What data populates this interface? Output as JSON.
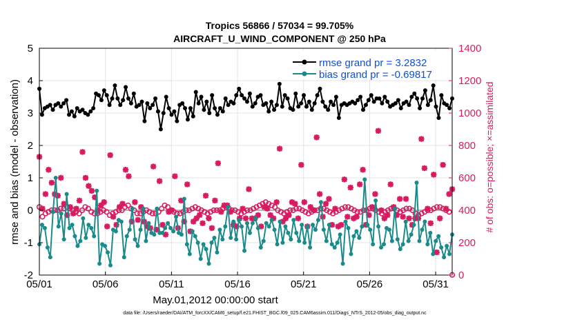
{
  "chart_data": {
    "type": "line",
    "title_line1": "Tropics 56866 / 57034 = 99.705%",
    "title_line2": "AIRCRAFT_U_WIND_COMPONENT @ 250 hPa",
    "xlabel": "May.01,2012 00:00:00 start",
    "ylabel": "rmse and bias (model - observation)",
    "ylabel_right": "# of obs: o=possible; ×=assimilated",
    "footnote": "data file: /Users/raeder/DAI/ATM_forcXX/CAM6_setup/f.e21.FHIST_BGC.f09_025.CAM6assim.011/Diags_NTrS_2012-05/obs_diag_output.nc",
    "xlim": [
      0,
      31.25
    ],
    "ylim": [
      -2,
      5
    ],
    "ylim_right": [
      0,
      1400
    ],
    "x_ticks": [
      0,
      5,
      10,
      15,
      20,
      25,
      30
    ],
    "x_tick_labels": [
      "05/01",
      "05/06",
      "05/11",
      "05/16",
      "05/21",
      "05/26",
      "05/31"
    ],
    "y_ticks": [
      -2,
      -1,
      0,
      1,
      2,
      3,
      4,
      5
    ],
    "y_tick_labels": [
      "-2",
      "-1",
      "0",
      "1",
      "2",
      "3",
      "4",
      "5"
    ],
    "y_ticks_right": [
      0,
      200,
      400,
      600,
      800,
      1000,
      1200,
      1400
    ],
    "y_tick_labels_right": [
      "0",
      "200",
      "400",
      "600",
      "800",
      "1000",
      "1200",
      "1400"
    ],
    "grid": true,
    "legend_position": "top-right",
    "legend": [
      "rmse grand pr = 3.2832",
      "bias grand pr = -0.69817"
    ],
    "colors": {
      "rmse": "#000000",
      "bias": "#1a8a8a",
      "obs": "#d81b60",
      "zero_line": "#b5b5b5",
      "legend_text": "#0f4fd6"
    },
    "series": [
      {
        "name": "rmse grand pr = 3.2832",
        "axis": "left",
        "values": [
          3.75,
          2.95,
          3.15,
          3.2,
          3.25,
          3.1,
          3.25,
          3.3,
          3.2,
          3.3,
          3.4,
          2.95,
          3.05,
          2.9,
          3.15,
          3.05,
          3.1,
          3.0,
          2.95,
          3.05,
          3.15,
          3.6,
          3.55,
          3.4,
          3.7,
          3.55,
          3.25,
          3.45,
          3.85,
          3.45,
          3.25,
          3.4,
          3.8,
          3.45,
          3.3,
          3.6,
          3.2,
          3.25,
          3.35,
          2.75,
          3.3,
          3.15,
          3.25,
          3.45,
          3.05,
          2.5,
          3.0,
          3.5,
          3.15,
          2.95,
          3.05,
          2.75,
          3.25,
          3.3,
          3.15,
          2.8,
          3.15,
          2.9,
          3.65,
          3.3,
          3.5,
          3.1,
          3.35,
          3.0,
          3.55,
          3.15,
          2.95,
          3.15,
          3.05,
          3.45,
          3.25,
          3.35,
          3.3,
          3.55,
          3.75,
          3.55,
          3.45,
          3.35,
          3.6,
          3.2,
          3.3,
          3.5,
          3.55,
          3.25,
          3.3,
          3.05,
          3.35,
          3.1,
          3.25,
          3.9,
          3.2,
          3.55,
          3.45,
          3.15,
          3.1,
          3.6,
          3.2,
          3.3,
          3.55,
          3.2,
          3.35,
          3.1,
          3.3,
          3.55,
          3.75,
          3.35,
          3.2,
          3.1,
          3.35,
          3.25,
          3.5,
          2.85,
          3.25,
          3.3,
          3.25,
          3.3,
          3.35,
          3.3,
          3.4,
          3.5,
          3.1,
          3.25,
          3.4,
          3.55,
          3.35,
          3.45,
          3.45,
          3.3,
          3.5,
          3.35,
          3.2,
          3.25,
          3.3,
          3.4,
          3.15,
          3.3,
          3.35,
          3.25,
          3.5,
          3.6,
          3.45,
          3.15,
          3.45,
          3.7,
          3.25,
          3.4,
          3.85,
          3.2,
          2.85,
          3.55,
          3.3,
          3.25,
          3.15,
          3.45
        ]
      },
      {
        "name": "bias grand pr = -0.69817",
        "axis": "left",
        "values": [
          -1.05,
          -0.45,
          -0.55,
          -1.15,
          -1.45,
          -0.05,
          1.0,
          -0.5,
          -0.1,
          -0.9,
          0.5,
          -0.55,
          -0.45,
          -0.8,
          -1.1,
          -0.95,
          -0.25,
          -0.85,
          -0.45,
          -0.55,
          -0.8,
          0.6,
          -1.65,
          -1.05,
          -1.1,
          -1.3,
          -1.7,
          -0.6,
          -0.65,
          -0.3,
          -0.35,
          -1.45,
          -0.8,
          -0.6,
          0.05,
          -0.9,
          -1.1,
          -0.6,
          0.05,
          -0.95,
          -0.4,
          -0.7,
          -0.75,
          0.05,
          -0.7,
          -0.7,
          -0.55,
          -0.4,
          -0.55,
          -0.65,
          -0.2,
          -0.7,
          -0.75,
          0.35,
          -1.05,
          -1.35,
          -0.65,
          -0.8,
          -1.0,
          -1.5,
          -1.05,
          -1.2,
          -1.65,
          -1.0,
          -0.85,
          -1.3,
          -0.6,
          -0.9,
          -0.5,
          0.1,
          -0.85,
          -0.35,
          -0.9,
          -0.3,
          -0.5,
          -1.25,
          -0.4,
          -0.7,
          -0.4,
          -0.25,
          -0.55,
          -1.15,
          -0.95,
          -0.4,
          -0.5,
          -0.3,
          -0.6,
          -1.05,
          -0.35,
          -1.0,
          -0.5,
          -0.7,
          -0.9,
          -0.3,
          -0.7,
          -0.95,
          -0.45,
          -1.0,
          -0.5,
          -1.15,
          -0.45,
          -0.6,
          -0.3,
          0.25,
          -0.6,
          -0.95,
          -0.45,
          -1.05,
          -1.15,
          -1.0,
          -0.75,
          -1.65,
          -0.35,
          -0.55,
          -1.35,
          -0.8,
          -0.65,
          -0.85,
          -0.5,
          0.95,
          -0.45,
          -0.6,
          -1.05,
          0.3,
          -0.5,
          -1.15,
          -1.05,
          -0.55,
          -0.6,
          -0.95,
          0.05,
          -0.9,
          -1.2,
          -1.05,
          -0.35,
          -0.95,
          -0.75,
          -0.45,
          0.85,
          -0.95,
          -0.6,
          -0.35,
          -1.05,
          -0.7,
          -1.35,
          -0.95,
          -0.8,
          -1.15,
          -1.45,
          -1.1,
          -1.35,
          -0.75
        ]
      },
      {
        "name": "obs assimilated",
        "axis": "right",
        "marker": "x",
        "values": [
          730,
          410,
          500,
          650,
          570,
          500,
          490,
          600,
          440,
          370,
          420,
          380,
          410,
          460,
          760,
          600,
          550,
          520,
          480,
          400,
          430,
          450,
          300,
          740,
          360,
          310,
          420,
          440,
          650,
          610,
          330,
          450,
          340,
          420,
          330,
          300,
          290,
          670,
          280,
          580,
          310,
          250,
          390,
          400,
          610,
          290,
          460,
          330,
          560,
          270,
          330,
          350,
          370,
          320,
          490,
          350,
          290,
          460,
          690,
          390,
          430,
          430,
          390,
          310,
          300,
          350,
          410,
          350,
          530,
          350,
          350,
          370,
          300,
          420,
          410,
          370,
          350,
          450,
          780,
          330,
          350,
          370,
          450,
          440,
          350,
          680,
          450,
          300,
          420,
          400,
          850,
          500,
          360,
          440,
          470,
          310,
          410,
          300,
          310,
          590,
          360,
          540,
          350,
          360,
          560,
          650,
          310,
          370,
          420,
          500,
          890,
          400,
          350,
          370,
          560,
          420,
          370,
          470,
          360,
          470,
          350,
          310,
          350,
          350,
          840,
          660,
          410,
          320,
          620,
          140,
          350,
          680,
          410,
          500,
          530
        ]
      },
      {
        "name": "obs possible",
        "axis": "right",
        "marker": "o",
        "values": [
          420,
          360,
          380,
          390,
          400,
          400,
          400,
          410,
          410,
          420,
          410,
          400,
          390,
          380,
          400,
          420,
          410,
          390,
          380,
          380,
          390,
          400,
          390,
          370,
          380,
          390,
          400,
          400,
          420,
          430,
          410,
          400,
          380,
          380,
          390,
          400,
          390,
          380,
          380,
          390,
          410,
          430,
          420,
          400,
          390,
          380,
          380,
          390,
          400,
          400,
          410,
          420,
          410,
          400,
          390,
          380,
          390,
          400,
          400,
          400,
          410,
          420,
          410,
          400,
          400,
          390,
          380,
          390,
          400,
          400,
          410,
          420,
          430,
          440,
          450,
          440,
          430,
          420,
          400,
          390,
          380,
          390,
          400,
          400,
          410,
          410,
          400,
          390,
          380,
          390,
          400,
          400,
          410,
          410,
          400,
          390,
          380,
          390,
          400,
          410,
          420,
          420,
          410,
          400,
          390,
          390,
          400,
          400,
          410,
          410,
          400,
          390,
          380,
          390,
          400,
          410,
          410,
          400,
          390,
          400,
          410,
          410,
          400,
          380,
          370,
          380,
          390,
          400,
          400,
          410,
          420,
          420,
          410,
          400,
          390,
          1
        ]
      }
    ]
  }
}
